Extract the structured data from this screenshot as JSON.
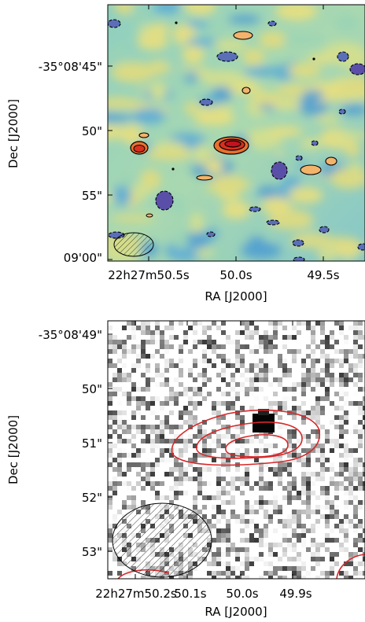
{
  "chart_data": [
    {
      "type": "heatmap",
      "title": "",
      "xlabel": "RA [J2000]",
      "ylabel": "Dec [J2000]",
      "x_ticks": [
        "22h27m50.5s",
        "50.0s",
        "49.5s"
      ],
      "y_ticks": [
        "-35°08'45\"",
        "50\"",
        "55\"",
        "09'00\""
      ],
      "colormap": "blue-yellow-red",
      "contours": [
        {
          "sign": "positive",
          "style": "solid",
          "color": "#000000"
        },
        {
          "sign": "negative",
          "style": "dashed",
          "color": "#000000"
        }
      ],
      "beam": {
        "shape": "ellipse",
        "hatched": true,
        "position": "bottom-left"
      }
    },
    {
      "type": "heatmap",
      "title": "",
      "xlabel": "RA [J2000]",
      "ylabel": "Dec [J2000]",
      "x_ticks": [
        "22h27m50.2s",
        "50.1s",
        "50.0s",
        "49.9s"
      ],
      "y_ticks": [
        "-35°08'49\"",
        "50\"",
        "51\"",
        "52\"",
        "53\""
      ],
      "colormap": "grayscale",
      "contours": [
        {
          "sign": "positive",
          "style": "solid",
          "color": "#d62728"
        }
      ],
      "beam": {
        "shape": "ellipse",
        "hatched": true,
        "position": "bottom-left"
      }
    }
  ]
}
